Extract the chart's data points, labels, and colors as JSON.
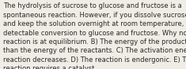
{
  "wrapped_text": "The hydrolysis of sucrose to glucose and fructose is a\nspontaneous reaction. However, if you dissolve sucrose in water\nand keep the solution overnight at room temperature, there is no\ndetectable conversion to glucose and fructose. Why not? A) The\nreaction is at equilibrium. B) The energy of the products is higher\nthan the energy of the reactants. C) The activation energy of the\nreaction decreases. D) The reaction is endergonic. E) The\nreaction requires a catalyst.",
  "background_color": "#f0ede6",
  "text_color": "#2a2a2a",
  "font_size": 6.0,
  "fig_width": 2.35,
  "fig_height": 0.88
}
